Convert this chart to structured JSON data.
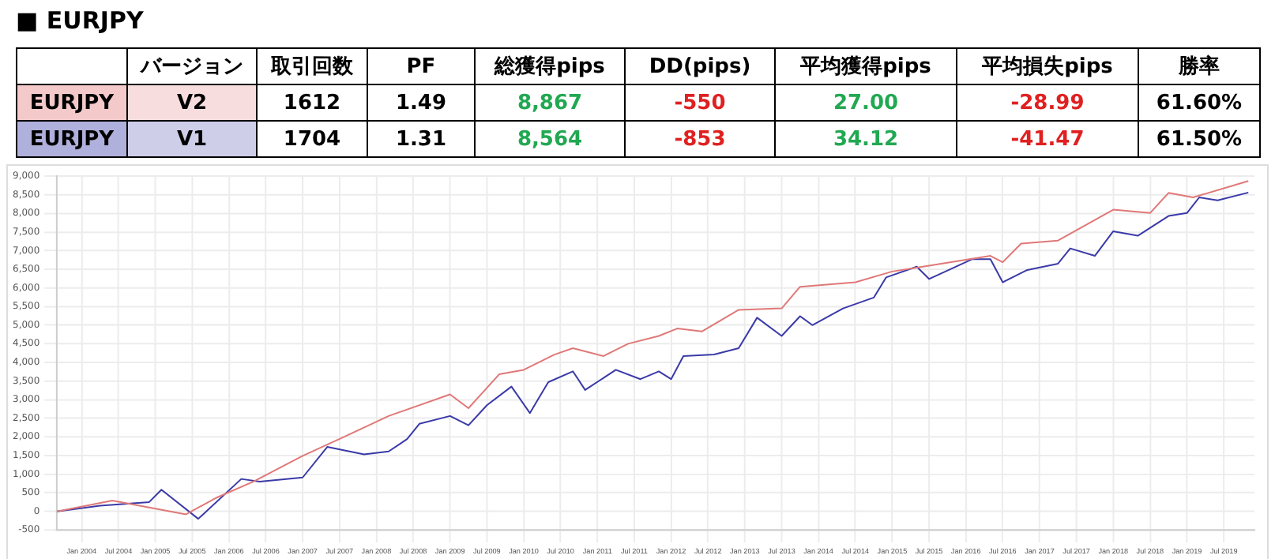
{
  "chart_data": [
    {
      "type": "other",
      "title": "■ EURJPY",
      "categories": [
        null,
        "バージョン",
        "取引回数",
        "PF",
        "総獲得pips",
        "DD(pips)",
        "平均獲得pips",
        "平均損失pips",
        "勝率"
      ],
      "cell_labels": [
        [
          "EURJPY",
          "V2",
          "1612",
          "1.49",
          "8,867",
          "-550",
          "27.00",
          "-28.99",
          "61.60%"
        ],
        [
          "EURJPY",
          "V1",
          "1704",
          "1.31",
          "8,564",
          "-853",
          "34.12",
          "-41.47",
          "61.50%"
        ]
      ],
      "colors": [
        "#000000",
        "#000000",
        "#000000",
        "#000000",
        "#22a852",
        "#e02020",
        "#22a852",
        "#e02020",
        "#000000"
      ]
    },
    {
      "type": "line",
      "grid": true,
      "legend": false,
      "marker": "none",
      "line_style": "solid",
      "xlim": [
        "2003-09",
        "2019-12"
      ],
      "ylim": [
        -500,
        9000
      ],
      "yticks": [
        -500,
        0,
        500,
        {
          "value": 1000,
          "label": "1,000"
        },
        {
          "value": 1500,
          "label": "1,500"
        },
        {
          "value": 2000,
          "label": "2,000"
        },
        {
          "value": 2500,
          "label": "2,500"
        },
        {
          "value": 3000,
          "label": "3,000"
        },
        {
          "value": 3500,
          "label": "3,500"
        },
        {
          "value": 4000,
          "label": "4,000"
        },
        {
          "value": 4500,
          "label": "4,500"
        },
        {
          "value": 5000,
          "label": "5,000"
        },
        {
          "value": 5500,
          "label": "5,500"
        },
        {
          "value": 6000,
          "label": "6,000"
        },
        {
          "value": 6500,
          "label": "6,500"
        },
        {
          "value": 7000,
          "label": "7,000"
        },
        {
          "value": 7500,
          "label": "7,500"
        },
        {
          "value": 8000,
          "label": "8,000"
        },
        {
          "value": 8500,
          "label": "8,500"
        },
        {
          "value": 9000,
          "label": "9,000"
        }
      ],
      "xticks": [
        {
          "value": "2004-01",
          "label": "Jan 2004"
        },
        {
          "value": "2004-07",
          "label": "Jul 2004"
        },
        {
          "value": "2005-01",
          "label": "Jan 2005"
        },
        {
          "value": "2005-07",
          "label": "Jul 2005"
        },
        {
          "value": "2006-01",
          "label": "Jan 2006"
        },
        {
          "value": "2006-07",
          "label": "Jul 2006"
        },
        {
          "value": "2007-01",
          "label": "Jan 2007"
        },
        {
          "value": "2007-07",
          "label": "Jul 2007"
        },
        {
          "value": "2008-01",
          "label": "Jan 2008"
        },
        {
          "value": "2008-07",
          "label": "Jul 2008"
        },
        {
          "value": "2009-01",
          "label": "Jan 2009"
        },
        {
          "value": "2009-07",
          "label": "Jul 2009"
        },
        {
          "value": "2010-01",
          "label": "Jan 2010"
        },
        {
          "value": "2010-07",
          "label": "Jul 2010"
        },
        {
          "value": "2011-01",
          "label": "Jan 2011"
        },
        {
          "value": "2011-07",
          "label": "Jul 2011"
        },
        {
          "value": "2012-01",
          "label": "Jan 2012"
        },
        {
          "value": "2012-07",
          "label": "Jul 2012"
        },
        {
          "value": "2013-01",
          "label": "Jan 2013"
        },
        {
          "value": "2013-07",
          "label": "Jul 2013"
        },
        {
          "value": "2014-01",
          "label": "Jan 2014"
        },
        {
          "value": "2014-07",
          "label": "Jul 2014"
        },
        {
          "value": "2015-01",
          "label": "Jan 2015"
        },
        {
          "value": "2015-07",
          "label": "Jul 2015"
        },
        {
          "value": "2016-01",
          "label": "Jan 2016"
        },
        {
          "value": "2016-07",
          "label": "Jul 2016"
        },
        {
          "value": "2017-01",
          "label": "Jan 2017"
        },
        {
          "value": "2017-07",
          "label": "Jul 2017"
        },
        {
          "value": "2018-01",
          "label": "Jan 2018"
        },
        {
          "value": "2018-07",
          "label": "Jul 2018"
        },
        {
          "value": "2019-01",
          "label": "Jan 2019"
        },
        {
          "value": "2019-07",
          "label": "Jul 2019"
        }
      ],
      "series": [
        {
          "color": "#e07878",
          "x": [
            "2003-09",
            "2004-06",
            "2005-06",
            "2005-11",
            "2006-05",
            "2007-01",
            "2007-08",
            "2008-03",
            "2009-01",
            "2009-04",
            "2009-09",
            "2010-01",
            "2010-06",
            "2010-09",
            "2011-02",
            "2011-06",
            "2011-11",
            "2012-02",
            "2012-06",
            "2012-12",
            "2013-07",
            "2013-10",
            "2014-07",
            "2015-01",
            "2015-06",
            "2016-05",
            "2016-07",
            "2016-10",
            "2017-04",
            "2018-01",
            "2018-07",
            "2018-10",
            "2019-02",
            "2019-11"
          ],
          "values": [
            0,
            290,
            -80,
            370,
            800,
            1490,
            2020,
            2560,
            3140,
            2770,
            3680,
            3800,
            4210,
            4380,
            4170,
            4500,
            4710,
            4910,
            4830,
            5410,
            5450,
            6030,
            6150,
            6440,
            6570,
            6860,
            6690,
            7190,
            7270,
            8100,
            8010,
            8550,
            8430,
            8870
          ]
        },
        {
          "color": "#3a3aa8",
          "x": [
            "2003-09",
            "2004-04",
            "2004-12",
            "2005-02",
            "2005-08",
            "2006-03",
            "2006-06",
            "2007-01",
            "2007-05",
            "2007-11",
            "2008-03",
            "2008-06",
            "2008-08",
            "2009-01",
            "2009-04",
            "2009-07",
            "2009-11",
            "2010-02",
            "2010-05",
            "2010-09",
            "2010-11",
            "2011-04",
            "2011-08",
            "2011-11",
            "2012-01",
            "2012-03",
            "2012-08",
            "2012-12",
            "2013-03",
            "2013-07",
            "2013-10",
            "2013-12",
            "2014-05",
            "2014-10",
            "2014-12",
            "2015-05",
            "2015-07",
            "2016-02",
            "2016-05",
            "2016-07",
            "2016-11",
            "2017-04",
            "2017-06",
            "2017-10",
            "2018-01",
            "2018-05",
            "2018-10",
            "2019-01",
            "2019-03",
            "2019-06",
            "2019-11"
          ],
          "values": [
            0,
            150,
            250,
            580,
            -200,
            870,
            800,
            910,
            1730,
            1530,
            1610,
            1940,
            2350,
            2560,
            2310,
            2850,
            3350,
            2640,
            3470,
            3760,
            3260,
            3800,
            3550,
            3760,
            3550,
            4170,
            4210,
            4380,
            5200,
            4710,
            5240,
            5000,
            5450,
            5740,
            6280,
            6570,
            6240,
            6770,
            6770,
            6150,
            6480,
            6650,
            7060,
            6860,
            7520,
            7400,
            7930,
            8010,
            8430,
            8350,
            8560
          ]
        }
      ]
    }
  ]
}
